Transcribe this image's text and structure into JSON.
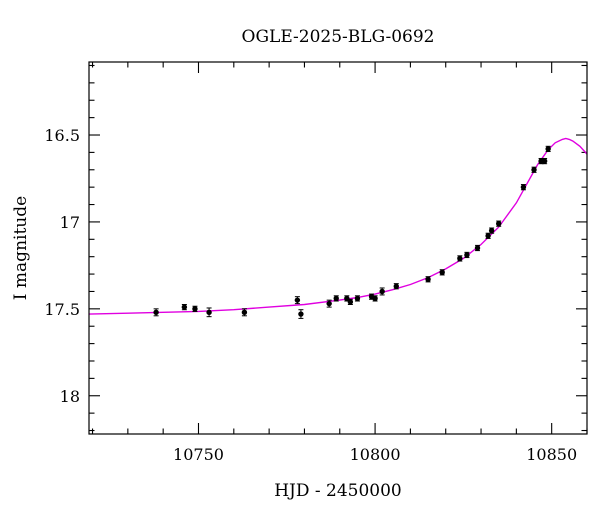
{
  "chart_data": {
    "type": "scatter",
    "title": "OGLE-2025-BLG-0692",
    "xlabel": "HJD - 2450000",
    "ylabel": "I magnitude",
    "xlim": [
      10719,
      10860
    ],
    "ylim": [
      18.22,
      16.08
    ],
    "y_inverted": true,
    "x_major_ticks": [
      10750,
      10800,
      10850
    ],
    "x_tick_labels": [
      "10750",
      "10800",
      "10850"
    ],
    "x_minor_step": 10,
    "y_major_ticks": [
      16.5,
      17,
      17.5,
      18
    ],
    "y_tick_labels": [
      "16.5",
      "17",
      "17.5",
      "18"
    ],
    "y_minor_step": 0.1,
    "grid": false,
    "colors": {
      "points": "#000000",
      "model": "#e000e0"
    },
    "series": [
      {
        "type": "scatter",
        "x": [
          10738,
          10746,
          10749,
          10753,
          10763,
          10778,
          10779,
          10787,
          10789,
          10792,
          10793,
          10795,
          10799,
          10800,
          10802,
          10806,
          10815,
          10819,
          10824,
          10826,
          10829,
          10832,
          10833,
          10835,
          10842,
          10845,
          10847,
          10848,
          10849
        ],
        "y": [
          17.52,
          17.49,
          17.5,
          17.52,
          17.52,
          17.45,
          17.53,
          17.47,
          17.44,
          17.44,
          17.46,
          17.44,
          17.43,
          17.44,
          17.4,
          17.37,
          17.33,
          17.29,
          17.21,
          17.19,
          17.15,
          17.08,
          17.05,
          17.01,
          16.8,
          16.7,
          16.65,
          16.65,
          16.58
        ],
        "yerr": [
          0.02,
          0.015,
          0.015,
          0.025,
          0.02,
          0.02,
          0.025,
          0.02,
          0.015,
          0.015,
          0.015,
          0.015,
          0.015,
          0.015,
          0.02,
          0.015,
          0.015,
          0.015,
          0.015,
          0.015,
          0.015,
          0.015,
          0.015,
          0.015,
          0.015,
          0.015,
          0.015,
          0.015,
          0.015
        ]
      },
      {
        "type": "line",
        "x": [
          10719,
          10730,
          10740,
          10750,
          10760,
          10770,
          10780,
          10790,
          10795,
          10800,
          10805,
          10810,
          10815,
          10820,
          10825,
          10830,
          10835,
          10840,
          10843,
          10846,
          10849,
          10851,
          10853,
          10854,
          10855,
          10856,
          10858,
          10860
        ],
        "y": [
          17.53,
          17.525,
          17.52,
          17.515,
          17.505,
          17.49,
          17.475,
          17.45,
          17.435,
          17.415,
          17.39,
          17.36,
          17.32,
          17.27,
          17.21,
          17.13,
          17.03,
          16.89,
          16.78,
          16.67,
          16.585,
          16.545,
          16.525,
          16.52,
          16.525,
          16.535,
          16.565,
          16.61
        ]
      }
    ]
  }
}
